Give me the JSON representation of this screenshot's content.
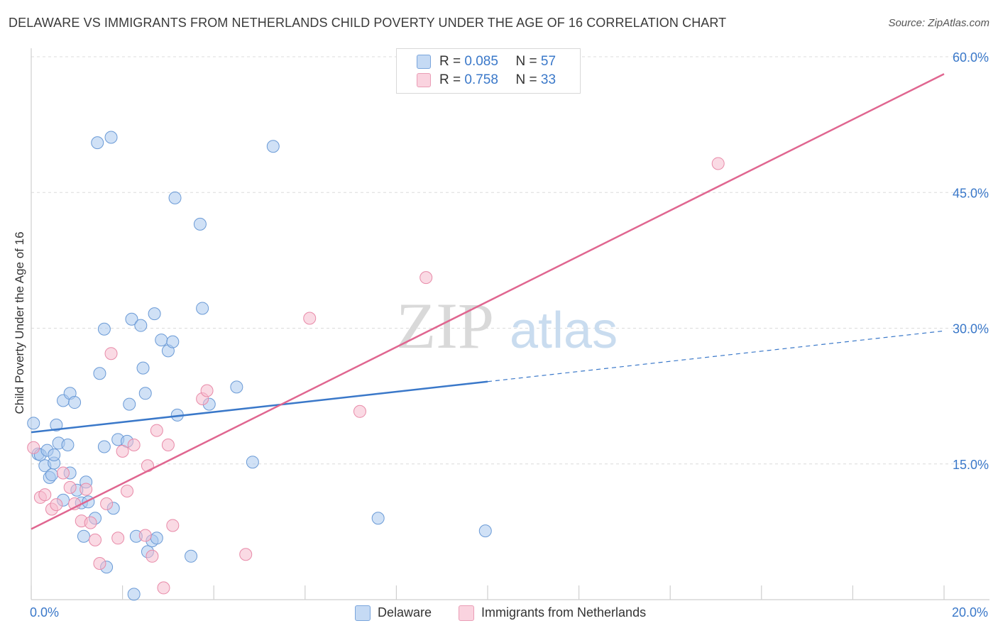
{
  "title": "DELAWARE VS IMMIGRANTS FROM NETHERLANDS CHILD POVERTY UNDER THE AGE OF 16 CORRELATION CHART",
  "source": "Source: ZipAtlas.com",
  "watermark": {
    "zip": "ZIP",
    "atlas": "atlas"
  },
  "legend_top": {
    "rows": [
      {
        "r_label": "R =",
        "r_value": "0.085",
        "n_label": "N =",
        "n_value": "57",
        "color": "#a9c8ef"
      },
      {
        "r_label": "R =",
        "r_value": "0.758",
        "n_label": "N =",
        "n_value": "33",
        "color": "#f6bccd"
      }
    ]
  },
  "legend_bottom": [
    {
      "label": "Delaware",
      "color": "#a9c8ef"
    },
    {
      "label": "Immigrants from Netherlands",
      "color": "#f6bccd"
    }
  ],
  "chart_data": {
    "type": "scatter",
    "title": "DELAWARE VS IMMIGRANTS FROM NETHERLANDS CHILD POVERTY UNDER THE AGE OF 16 CORRELATION CHART",
    "xlabel": "",
    "ylabel": "Child Poverty Under the Age of 16",
    "xlim": [
      0,
      20
    ],
    "ylim": [
      0,
      60
    ],
    "x_tick_labels": [
      "0.0%",
      "20.0%"
    ],
    "y_tick_labels": [
      "15.0%",
      "30.0%",
      "45.0%",
      "60.0%"
    ],
    "y_ticks": [
      15,
      30,
      45,
      60
    ],
    "grid": true,
    "legend_position": "top-center",
    "colors": {
      "delaware": "#3a78c9",
      "netherlands": "#e06690"
    },
    "series": [
      {
        "name": "Delaware",
        "color": "#a9c8ef",
        "stroke": "#6a9ad6",
        "trend": {
          "x0": 0,
          "y0": 18.5,
          "x1": 10,
          "y1": 24.1,
          "dash_x1": 20,
          "dash_y1": 29.7
        },
        "points": [
          [
            0.05,
            19.5
          ],
          [
            0.15,
            16.1
          ],
          [
            0.2,
            16.0
          ],
          [
            0.3,
            14.8
          ],
          [
            0.35,
            16.5
          ],
          [
            0.4,
            13.5
          ],
          [
            0.45,
            13.8
          ],
          [
            0.5,
            15.1
          ],
          [
            0.55,
            19.3
          ],
          [
            0.6,
            17.3
          ],
          [
            0.7,
            11.0
          ],
          [
            0.7,
            22.0
          ],
          [
            0.8,
            17.1
          ],
          [
            0.85,
            22.8
          ],
          [
            0.85,
            14.0
          ],
          [
            0.95,
            21.8
          ],
          [
            1.0,
            12.1
          ],
          [
            1.1,
            10.7
          ],
          [
            1.15,
            7.0
          ],
          [
            1.2,
            13.0
          ],
          [
            1.25,
            10.8
          ],
          [
            1.4,
            9.0
          ],
          [
            1.5,
            25.0
          ],
          [
            1.6,
            16.9
          ],
          [
            1.6,
            29.9
          ],
          [
            1.65,
            3.6
          ],
          [
            1.8,
            10.1
          ],
          [
            1.9,
            17.7
          ],
          [
            2.1,
            17.5
          ],
          [
            2.15,
            21.6
          ],
          [
            2.2,
            31.0
          ],
          [
            2.25,
            0.6
          ],
          [
            2.3,
            7.0
          ],
          [
            2.4,
            30.3
          ],
          [
            2.45,
            25.6
          ],
          [
            2.5,
            22.8
          ],
          [
            2.55,
            5.3
          ],
          [
            2.65,
            6.5
          ],
          [
            2.7,
            31.6
          ],
          [
            2.75,
            6.8
          ],
          [
            2.85,
            28.7
          ],
          [
            3.0,
            27.5
          ],
          [
            3.1,
            28.5
          ],
          [
            3.2,
            20.4
          ],
          [
            3.5,
            4.8
          ],
          [
            3.75,
            32.2
          ],
          [
            3.9,
            21.6
          ],
          [
            4.5,
            23.5
          ],
          [
            4.85,
            15.2
          ],
          [
            1.45,
            50.5
          ],
          [
            1.75,
            51.1
          ],
          [
            3.15,
            44.4
          ],
          [
            3.7,
            41.5
          ],
          [
            5.3,
            50.1
          ],
          [
            7.6,
            9.0
          ],
          [
            9.95,
            7.6
          ],
          [
            0.5,
            16.0
          ]
        ]
      },
      {
        "name": "Immigrants from Netherlands",
        "color": "#f6bccd",
        "stroke": "#e88aa8",
        "trend": {
          "x0": 0,
          "y0": 7.8,
          "x1": 20,
          "y1": 58.1
        },
        "points": [
          [
            0.05,
            16.8
          ],
          [
            0.2,
            11.3
          ],
          [
            0.3,
            11.6
          ],
          [
            0.45,
            10.0
          ],
          [
            0.55,
            10.5
          ],
          [
            0.7,
            14.0
          ],
          [
            0.85,
            12.4
          ],
          [
            0.95,
            10.6
          ],
          [
            1.1,
            8.7
          ],
          [
            1.2,
            12.2
          ],
          [
            1.3,
            8.5
          ],
          [
            1.4,
            6.6
          ],
          [
            1.5,
            4.0
          ],
          [
            1.65,
            10.6
          ],
          [
            1.75,
            27.2
          ],
          [
            1.9,
            6.8
          ],
          [
            2.0,
            16.4
          ],
          [
            2.1,
            12.0
          ],
          [
            2.25,
            17.1
          ],
          [
            2.5,
            7.1
          ],
          [
            2.55,
            14.8
          ],
          [
            2.65,
            4.8
          ],
          [
            2.75,
            18.7
          ],
          [
            2.9,
            1.3
          ],
          [
            3.0,
            17.1
          ],
          [
            3.1,
            8.2
          ],
          [
            3.75,
            22.2
          ],
          [
            3.85,
            23.1
          ],
          [
            4.7,
            5.0
          ],
          [
            6.1,
            31.1
          ],
          [
            7.2,
            20.8
          ],
          [
            8.65,
            35.6
          ],
          [
            15.05,
            48.2
          ]
        ]
      }
    ]
  }
}
